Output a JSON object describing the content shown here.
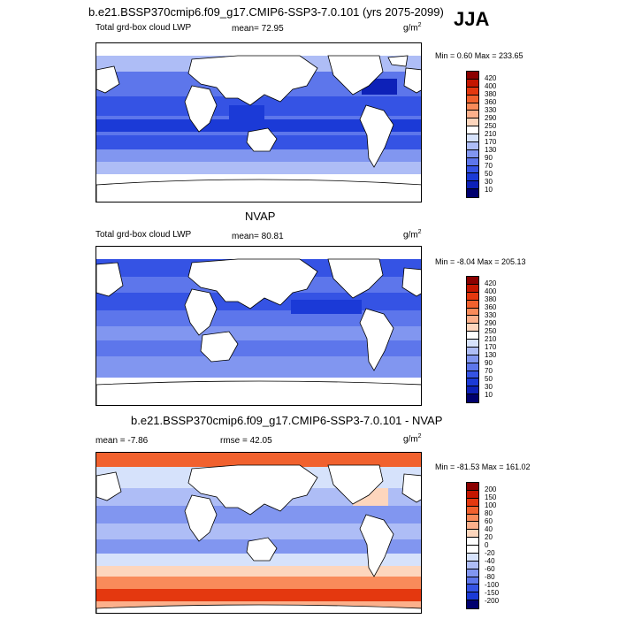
{
  "season": "JJA",
  "panels": [
    {
      "title": "b.e21.BSSP370cmip6.f09_g17.CMIP6-SSP3-7.0.101 (yrs 2075-2099)",
      "left_label": "Total grd-box cloud LWP",
      "stat_label": "mean=  72.95",
      "units": "g/m",
      "units_exp": "2",
      "minmax": "Min =   0.60 Max = 233.65",
      "colorbar": {
        "labels": [
          "420",
          "400",
          "380",
          "360",
          "330",
          "290",
          "250",
          "210",
          "170",
          "130",
          "90",
          "70",
          "50",
          "30",
          "10"
        ],
        "colors": [
          "#8b0000",
          "#c41600",
          "#e4380f",
          "#f1612e",
          "#f98b5a",
          "#fcb08b",
          "#fdd6bd",
          "#ffffff",
          "#d6e2fb",
          "#aebdf6",
          "#8196f0",
          "#5d76eb",
          "#3553e4",
          "#1b3ad7",
          "#0d21b8",
          "#00006e"
        ]
      }
    },
    {
      "title": "NVAP",
      "left_label": "Total grd-box cloud LWP",
      "stat_label": "mean=  80.81",
      "units": "g/m",
      "units_exp": "2",
      "minmax": "Min =  -8.04 Max = 205.13",
      "colorbar": {
        "labels": [
          "420",
          "400",
          "380",
          "360",
          "330",
          "290",
          "250",
          "210",
          "170",
          "130",
          "90",
          "70",
          "50",
          "30",
          "10"
        ],
        "colors": [
          "#8b0000",
          "#c41600",
          "#e4380f",
          "#f1612e",
          "#f98b5a",
          "#fcb08b",
          "#fdd6bd",
          "#ffffff",
          "#d6e2fb",
          "#aebdf6",
          "#8196f0",
          "#5d76eb",
          "#3553e4",
          "#1b3ad7",
          "#0d21b8",
          "#00006e"
        ]
      }
    },
    {
      "title": "b.e21.BSSP370cmip6.f09_g17.CMIP6-SSP3-7.0.101 - NVAP",
      "left_label": "mean =  -7.86",
      "stat_label": "rmse =  42.05",
      "units": "g/m",
      "units_exp": "2",
      "minmax": "Min = -81.53 Max = 161.02",
      "colorbar": {
        "labels": [
          "200",
          "150",
          "100",
          "80",
          "60",
          "40",
          "20",
          "0",
          "-20",
          "-40",
          "-60",
          "-80",
          "-100",
          "-150",
          "-200"
        ],
        "colors": [
          "#8b0000",
          "#c41600",
          "#e4380f",
          "#f1612e",
          "#f98b5a",
          "#fcb08b",
          "#fdd6bd",
          "#ffffff",
          "#ffffff",
          "#d6e2fb",
          "#aebdf6",
          "#8196f0",
          "#5d76eb",
          "#3553e4",
          "#1b3ad7",
          "#00006e"
        ]
      }
    }
  ]
}
